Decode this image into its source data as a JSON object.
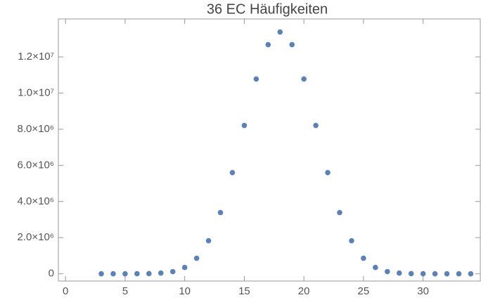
{
  "chart_data": {
    "type": "scatter",
    "title": "36 EC Häufigkeiten",
    "x": [
      3,
      4,
      5,
      6,
      7,
      8,
      9,
      10,
      11,
      12,
      13,
      14,
      15,
      16,
      17,
      18,
      19,
      20,
      21,
      22,
      23,
      24,
      25,
      26,
      27,
      28,
      29,
      30,
      31,
      32,
      33,
      34
    ],
    "values": [
      0,
      0,
      0,
      5000,
      10000,
      40000,
      120000,
      350000,
      860000,
      1830000,
      3390000,
      5600000,
      8210000,
      10780000,
      12680000,
      13380000,
      12680000,
      10780000,
      8210000,
      5600000,
      3390000,
      1830000,
      860000,
      350000,
      120000,
      40000,
      10000,
      5000,
      0,
      0,
      0,
      0
    ],
    "color": "#5e81b5",
    "xlim": [
      -0.6,
      34.8
    ],
    "xticks": [
      0,
      5,
      10,
      15,
      20,
      25,
      30
    ],
    "ylim": [
      -400000,
      14100000
    ],
    "yticks": [
      0,
      {
        "value": 2000000,
        "label": "2.0×10⁶"
      },
      {
        "value": 4000000,
        "label": "4.0×10⁶"
      },
      {
        "value": 6000000,
        "label": "6.0×10⁶"
      },
      {
        "value": 8000000,
        "label": "8.0×10⁶"
      },
      {
        "value": 10000000,
        "label": "1.0×10⁷"
      },
      {
        "value": 12000000,
        "label": "1.2×10⁷"
      }
    ]
  }
}
